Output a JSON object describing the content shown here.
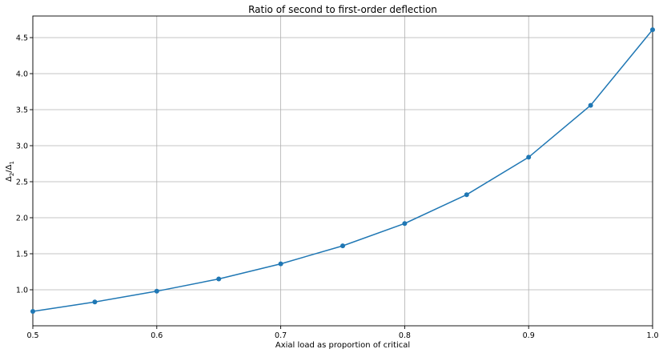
{
  "chart_data": {
    "type": "line",
    "title": "Ratio of second to first-order deflection",
    "xlabel": "Axial load as proportion of critical",
    "ylabel_main": "Δ",
    "ylabel_sub1": "2",
    "ylabel_mid": "/Δ",
    "ylabel_sub2": "1",
    "xlim": [
      0.5,
      1.0
    ],
    "ylim": [
      0.5,
      4.8
    ],
    "grid": true,
    "xticks": [
      0.5,
      0.6,
      0.7,
      0.8,
      0.9,
      1.0
    ],
    "xtick_labels": [
      "0.5",
      "0.6",
      "0.7",
      "0.8",
      "0.9",
      "1.0"
    ],
    "yticks": [
      1.0,
      1.5,
      2.0,
      2.5,
      3.0,
      3.5,
      4.0,
      4.5
    ],
    "ytick_labels": [
      "1.0",
      "1.5",
      "2.0",
      "2.5",
      "3.0",
      "3.5",
      "4.0",
      "4.5"
    ],
    "series": [
      {
        "color": "#1f77b4",
        "x": [
          0.5,
          0.55,
          0.6,
          0.65,
          0.7,
          0.75,
          0.8,
          0.85,
          0.9,
          0.95,
          1.0
        ],
        "y": [
          0.7,
          0.83,
          0.98,
          1.15,
          1.36,
          1.61,
          1.92,
          2.32,
          2.84,
          3.56,
          4.61
        ]
      }
    ]
  }
}
